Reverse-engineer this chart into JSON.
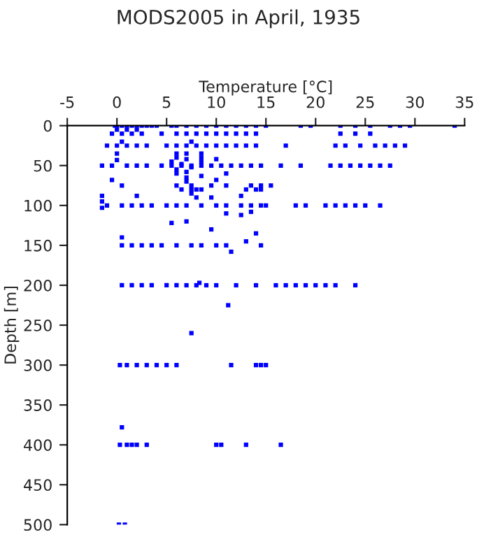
{
  "chart_data": {
    "type": "scatter",
    "title": "MODS2005 in April, 1935",
    "xlabel": "Temperature [°C]",
    "ylabel": "Depth [m]",
    "xlim": [
      -5,
      35
    ],
    "ylim": [
      500,
      0
    ],
    "xticks": [
      -5,
      0,
      5,
      10,
      15,
      20,
      25,
      30,
      35
    ],
    "yticks": [
      0,
      50,
      100,
      150,
      200,
      250,
      300,
      350,
      400,
      450,
      500
    ],
    "marker": "square",
    "grid": false,
    "series": [
      {
        "color": "#0000ff",
        "x": [
          -0.2,
          0,
          0.5,
          1,
          1.5,
          2,
          2.5,
          3,
          3.5,
          4,
          5.5,
          6,
          7,
          8,
          9,
          10,
          11,
          12,
          13,
          14,
          15,
          18.5,
          19.5,
          22.5,
          24,
          25.5,
          27.5,
          28.5,
          29.5,
          34,
          0,
          1,
          2,
          -0.5,
          0.5,
          1.5,
          2.5,
          4.5,
          6,
          7,
          8,
          9,
          10,
          11,
          12,
          13,
          14,
          22.5,
          24,
          25.5,
          0.5,
          7.5,
          -1,
          0,
          1,
          2,
          3,
          5,
          6,
          7,
          8,
          9,
          10,
          11,
          12,
          13,
          14,
          17,
          22,
          23,
          24.5,
          26,
          27,
          28,
          29,
          0,
          6,
          7,
          8.5,
          6,
          7,
          8.5,
          5.5,
          6.5,
          7.5,
          6,
          7,
          8.5,
          10,
          6,
          7,
          8.5,
          11,
          0,
          -1.5,
          -0.5,
          1,
          2,
          3,
          4.5,
          5.5,
          6.5,
          7.5,
          8.5,
          9.5,
          10.5,
          11.5,
          12.5,
          13.5,
          14.5,
          16.5,
          18.5,
          21.5,
          22.5,
          23.5,
          24.5,
          25.5,
          26.5,
          27.5,
          -0.5,
          7,
          10,
          0.5,
          6,
          7.5,
          9.5,
          11,
          13.5,
          14.5,
          15.5,
          6.5,
          7.5,
          8,
          8.5,
          13,
          14,
          14.5,
          7.5,
          8,
          9.5,
          12.5,
          2,
          -1.5,
          -1.5,
          -1.5,
          -1,
          0.5,
          1.5,
          2.5,
          3.5,
          5,
          6,
          7,
          8.5,
          10,
          11,
          12.5,
          13.5,
          14.5,
          15,
          18,
          19,
          21,
          22,
          23,
          24,
          25,
          26.5,
          11,
          12.5,
          13.5,
          5.5,
          7,
          9.5,
          14,
          0.5,
          13,
          0.5,
          1.5,
          2.5,
          3.5,
          4.5,
          6,
          7.5,
          8.5,
          10,
          11,
          14.5,
          11.5,
          0.5,
          1.5,
          2.5,
          3.5,
          5,
          6,
          7,
          8,
          9,
          10,
          12,
          14,
          16,
          17,
          18,
          19,
          20,
          21,
          22,
          24,
          8.3,
          11.2,
          7.5,
          0.3,
          1,
          2,
          3,
          4,
          5,
          6,
          11.5,
          14,
          14.5,
          15,
          0.5,
          0.3,
          1,
          1.5,
          2,
          3,
          10,
          10.5,
          13,
          16.5,
          0.2,
          0.8
        ],
        "values": [
          0,
          0,
          0,
          0,
          0,
          0,
          0,
          0,
          0,
          0,
          0,
          0,
          0,
          0,
          0,
          0,
          0,
          0,
          0,
          0,
          0,
          0,
          0,
          0,
          0,
          0,
          0,
          0,
          0,
          0,
          5,
          5,
          5,
          10,
          10,
          10,
          10,
          10,
          10,
          10,
          10,
          10,
          10,
          10,
          10,
          10,
          10,
          10,
          10,
          10,
          20,
          20,
          25,
          25,
          25,
          25,
          25,
          25,
          25,
          25,
          25,
          25,
          25,
          25,
          25,
          25,
          25,
          25,
          25,
          25,
          25,
          25,
          25,
          25,
          25,
          35,
          35,
          35,
          35,
          40,
          42,
          45,
          45,
          48,
          52,
          55,
          58,
          40,
          42,
          60,
          65,
          63,
          60,
          43,
          50,
          50,
          50,
          50,
          50,
          50,
          50,
          50,
          50,
          50,
          50,
          50,
          50,
          50,
          50,
          50,
          50,
          50,
          50,
          50,
          50,
          50,
          50,
          50,
          50,
          68,
          70,
          68,
          75,
          75,
          75,
          75,
          75,
          75,
          75,
          75,
          80,
          80,
          80,
          80,
          80,
          80,
          80,
          85,
          90,
          90,
          88,
          88,
          88,
          95,
          103,
          100,
          100,
          100,
          100,
          100,
          100,
          100,
          100,
          100,
          100,
          100,
          100,
          100,
          100,
          100,
          100,
          100,
          100,
          100,
          100,
          100,
          100,
          100,
          110,
          112,
          108,
          122,
          120,
          130,
          135,
          140,
          145,
          150,
          150,
          150,
          150,
          150,
          150,
          150,
          150,
          150,
          150,
          150,
          158,
          200,
          200,
          200,
          200,
          200,
          200,
          200,
          200,
          200,
          200,
          200,
          200,
          200,
          200,
          200,
          200,
          200,
          200,
          200,
          200,
          197,
          225,
          260,
          300,
          300,
          300,
          300,
          300,
          300,
          300,
          300,
          300,
          300,
          300,
          378,
          400,
          400,
          400,
          400,
          400,
          400,
          400,
          400,
          400,
          500,
          500
        ]
      }
    ]
  }
}
